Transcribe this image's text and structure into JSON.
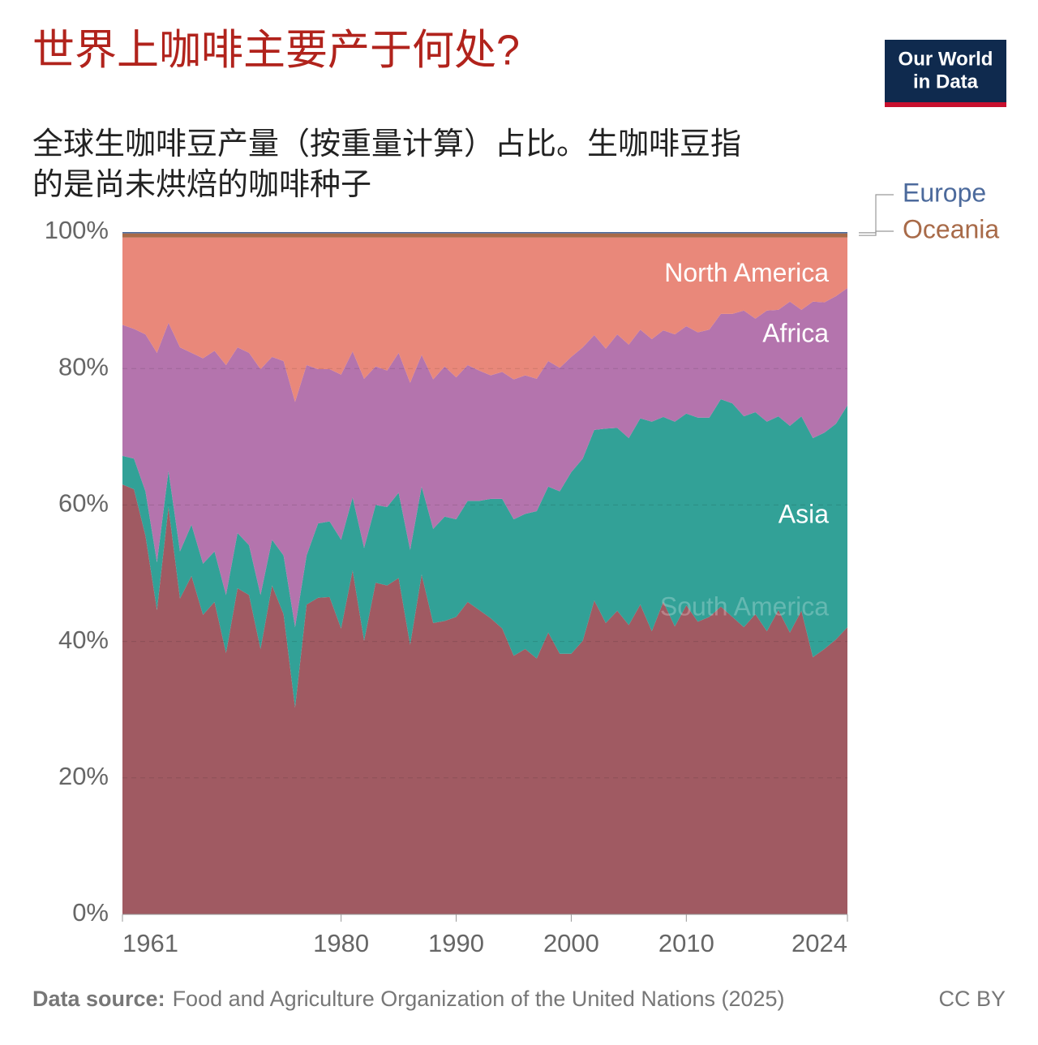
{
  "chart_data": {
    "type": "stacked-area",
    "title": "世界上咖啡主要产于何处?",
    "subtitle": [
      "全球生咖啡豆产量（按重量计算）占比。生咖啡豆指",
      "的是尚未烘焙的咖啡种子"
    ],
    "logo": [
      "Our World",
      "in Data"
    ],
    "source_label": "Data source:",
    "source": "Food and Agriculture Organization of the United Nations (2025)",
    "license": "CC BY",
    "x": [
      1961,
      1962,
      1963,
      1964,
      1965,
      1966,
      1967,
      1968,
      1969,
      1970,
      1971,
      1972,
      1973,
      1974,
      1975,
      1976,
      1977,
      1978,
      1979,
      1980,
      1981,
      1982,
      1983,
      1984,
      1985,
      1986,
      1987,
      1988,
      1989,
      1990,
      1991,
      1992,
      1993,
      1994,
      1995,
      1996,
      1997,
      1998,
      1999,
      2000,
      2001,
      2002,
      2003,
      2004,
      2005,
      2006,
      2007,
      2008,
      2009,
      2010,
      2011,
      2012,
      2013,
      2014,
      2015,
      2016,
      2017,
      2018,
      2019,
      2020,
      2021,
      2022,
      2023,
      2024
    ],
    "xlim": [
      1961,
      2024
    ],
    "xticks": [
      1961,
      1980,
      1990,
      2000,
      2010,
      2024
    ],
    "ylim": [
      0,
      100
    ],
    "yticks": [
      {
        "value": 0,
        "label": "0%"
      },
      {
        "value": 20,
        "label": "20%"
      },
      {
        "value": 40,
        "label": "40%"
      },
      {
        "value": 60,
        "label": "60%"
      },
      {
        "value": 80,
        "label": "80%"
      },
      {
        "value": 100,
        "label": "100%"
      }
    ],
    "grid": true,
    "series": [
      {
        "name": "South America",
        "color": "#a05a62",
        "values": [
          63,
          62.3,
          55.5,
          44.6,
          59.7,
          46.3,
          49.6,
          43.9,
          45.8,
          38.3,
          47.8,
          46.8,
          38.9,
          48.2,
          44,
          30.3,
          45.4,
          46.4,
          46.5,
          41.9,
          50.4,
          40.1,
          48.6,
          48.2,
          49.3,
          39.5,
          49.8,
          42.7,
          43,
          43.6,
          45.8,
          44.6,
          43.4,
          41.9,
          37.9,
          38.9,
          37.5,
          41.3,
          38.2,
          38.2,
          40.1,
          46,
          42.7,
          44.5,
          42.4,
          45.4,
          41.5,
          45.8,
          42.2,
          45.3,
          42.9,
          43.6,
          45.1,
          43.6,
          42.1,
          44,
          41.5,
          44.6,
          41.3,
          44.5,
          37.7,
          38.9,
          40.3,
          42.1
        ]
      },
      {
        "name": "Asia",
        "color": "#32a197",
        "values": [
          4.2,
          4.5,
          6.5,
          7,
          5.3,
          6.9,
          7.5,
          7.5,
          7.4,
          8.5,
          8.1,
          7.3,
          7.9,
          6.7,
          8.6,
          11.8,
          7.2,
          10.9,
          11.1,
          13,
          10.7,
          13.6,
          11.4,
          11.5,
          12.5,
          13.9,
          12.9,
          13.8,
          15.3,
          14.3,
          14.8,
          16,
          17.5,
          19,
          20,
          19.8,
          21.6,
          21.4,
          23.8,
          26.6,
          26.7,
          25,
          28.5,
          26.8,
          27.4,
          27.3,
          30.7,
          27.1,
          30,
          28.1,
          29.9,
          29.2,
          30.4,
          31.3,
          30.9,
          29.6,
          30.7,
          28.4,
          30.3,
          28.5,
          32.1,
          31.7,
          31.6,
          32.5
        ]
      },
      {
        "name": "Africa",
        "color": "#b474ad",
        "values": [
          19.2,
          19,
          23,
          30.7,
          21.7,
          29.9,
          25.2,
          30.1,
          29.4,
          33.7,
          27.2,
          28.2,
          33.1,
          26.8,
          28.5,
          33,
          27.9,
          22.6,
          22.3,
          24.2,
          21.4,
          24.8,
          20.3,
          20,
          20.5,
          24.5,
          19.3,
          21.9,
          22,
          20.8,
          19.9,
          19.1,
          18.1,
          18.6,
          20.5,
          20.3,
          19.4,
          18.4,
          18.1,
          16.9,
          16.3,
          13.9,
          11.7,
          13.7,
          13.7,
          13,
          12.1,
          12.7,
          12.8,
          12.8,
          12.5,
          12.9,
          12.5,
          13.1,
          15.5,
          13.7,
          16.3,
          15.6,
          18.2,
          15.6,
          20,
          19.1,
          18.7,
          17.2
        ]
      },
      {
        "name": "North America",
        "color": "#e9887a",
        "values": [
          12.8,
          13.4,
          14.2,
          16.9,
          12.5,
          16.1,
          16.9,
          17.7,
          16.6,
          18.7,
          16.1,
          16.9,
          19.3,
          17.5,
          18.1,
          24.1,
          18.7,
          19.3,
          19.3,
          20.1,
          16.7,
          20.7,
          18.9,
          19.5,
          16.9,
          21.3,
          17.2,
          20.8,
          18.9,
          20.5,
          18.7,
          19.5,
          20.2,
          19.7,
          20.8,
          20.2,
          20.7,
          18.1,
          19.1,
          17.5,
          16.1,
          14.3,
          16.3,
          14.2,
          15.7,
          13.5,
          14.9,
          13.6,
          14.2,
          13,
          13.9,
          13.5,
          11.2,
          11.2,
          10.7,
          11.9,
          10.7,
          10.6,
          9.4,
          10.6,
          9.4,
          9.5,
          8.6,
          7.4
        ]
      },
      {
        "name": "Oceania",
        "color": "#a86a48",
        "values": [
          0.6,
          0.6,
          0.6,
          0.6,
          0.6,
          0.6,
          0.6,
          0.6,
          0.6,
          0.6,
          0.6,
          0.6,
          0.6,
          0.6,
          0.6,
          0.6,
          0.6,
          0.6,
          0.6,
          0.6,
          0.6,
          0.6,
          0.6,
          0.6,
          0.6,
          0.6,
          0.6,
          0.6,
          0.6,
          0.6,
          0.6,
          0.6,
          0.6,
          0.6,
          0.6,
          0.6,
          0.6,
          0.6,
          0.6,
          0.6,
          0.6,
          0.6,
          0.6,
          0.6,
          0.6,
          0.6,
          0.6,
          0.6,
          0.6,
          0.6,
          0.6,
          0.6,
          0.6,
          0.6,
          0.6,
          0.6,
          0.6,
          0.6,
          0.6,
          0.6,
          0.6,
          0.6,
          0.6,
          0.6
        ]
      },
      {
        "name": "Europe",
        "color": "#4c6a9c",
        "values": [
          0.2,
          0.2,
          0.2,
          0.2,
          0.2,
          0.2,
          0.2,
          0.2,
          0.2,
          0.2,
          0.2,
          0.2,
          0.2,
          0.2,
          0.2,
          0.2,
          0.2,
          0.2,
          0.2,
          0.2,
          0.2,
          0.2,
          0.2,
          0.2,
          0.2,
          0.2,
          0.2,
          0.2,
          0.2,
          0.2,
          0.2,
          0.2,
          0.2,
          0.2,
          0.2,
          0.2,
          0.2,
          0.2,
          0.2,
          0.2,
          0.2,
          0.2,
          0.2,
          0.2,
          0.2,
          0.2,
          0.2,
          0.2,
          0.2,
          0.2,
          0.2,
          0.2,
          0.2,
          0.2,
          0.2,
          0.2,
          0.2,
          0.2,
          0.2,
          0.2,
          0.2,
          0.2,
          0.2,
          0.2
        ]
      }
    ]
  }
}
